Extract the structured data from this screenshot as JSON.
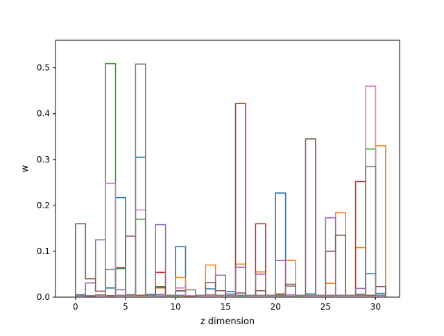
{
  "chart_data": {
    "type": "step",
    "title": "",
    "xlabel": "z dimension",
    "ylabel": "w",
    "xlim": [
      -2.0,
      32.4
    ],
    "ylim": [
      0,
      0.56
    ],
    "xticks": [
      0,
      5,
      10,
      15,
      20,
      25,
      30
    ],
    "yticks": [
      0.0,
      0.1,
      0.2,
      0.3,
      0.4,
      0.5
    ],
    "grid": false,
    "legend": "none",
    "bins_x": [
      0,
      1,
      2,
      3,
      4,
      5,
      6,
      7,
      8,
      9,
      10,
      11,
      12,
      13,
      14,
      15,
      16,
      17,
      18,
      19,
      20,
      21,
      22,
      23,
      24,
      25,
      26,
      27,
      28,
      29,
      30,
      31
    ],
    "series": [
      {
        "color": "#1f77b4",
        "values": [
          0.005,
          0.003,
          0.004,
          0.02,
          0.217,
          0.005,
          0.305,
          0.006,
          0.003,
          0.003,
          0.11,
          0.003,
          0.003,
          0.018,
          0.004,
          0.012,
          0.003,
          0.003,
          0.004,
          0.004,
          0.227,
          0.003,
          0.004,
          0.007,
          0.004,
          0.004,
          0.003,
          0.003,
          0.004,
          0.051,
          0.008
        ]
      },
      {
        "color": "#ff7f0e",
        "values": [
          0.003,
          0.002,
          0.003,
          0.003,
          0.003,
          0.003,
          0.003,
          0.003,
          0.02,
          0.003,
          0.043,
          0.002,
          0.003,
          0.07,
          0.003,
          0.003,
          0.072,
          0.003,
          0.055,
          0.003,
          0.005,
          0.08,
          0.003,
          0.003,
          0.003,
          0.03,
          0.184,
          0.003,
          0.108,
          0.003,
          0.33
        ]
      },
      {
        "color": "#2ca02c",
        "values": [
          0.003,
          0.003,
          0.004,
          0.509,
          0.062,
          0.004,
          0.17,
          0.004,
          0.021,
          0.003,
          0.003,
          0.003,
          0.003,
          0.003,
          0.003,
          0.003,
          0.003,
          0.003,
          0.003,
          0.003,
          0.003,
          0.003,
          0.003,
          0.003,
          0.003,
          0.003,
          0.003,
          0.003,
          0.003,
          0.323,
          0.003
        ]
      },
      {
        "color": "#d62728",
        "values": [
          0.003,
          0.003,
          0.003,
          0.003,
          0.003,
          0.004,
          0.004,
          0.004,
          0.054,
          0.004,
          0.004,
          0.003,
          0.004,
          0.004,
          0.004,
          0.004,
          0.422,
          0.004,
          0.16,
          0.004,
          0.004,
          0.004,
          0.004,
          0.004,
          0.004,
          0.004,
          0.004,
          0.004,
          0.252,
          0.004,
          0.004
        ]
      },
      {
        "color": "#9467bd",
        "values": [
          0.003,
          0.031,
          0.125,
          0.003,
          0.016,
          0.004,
          0.004,
          0.004,
          0.158,
          0.004,
          0.004,
          0.003,
          0.004,
          0.003,
          0.048,
          0.007,
          0.065,
          0.004,
          0.05,
          0.004,
          0.08,
          0.005,
          0.004,
          0.004,
          0.004,
          0.173,
          0.004,
          0.004,
          0.019,
          0.004,
          0.004
        ]
      },
      {
        "color": "#8c564b",
        "values": [
          0.16,
          0.04,
          0.013,
          0.003,
          0.064,
          0.133,
          0.004,
          0.004,
          0.023,
          0.004,
          0.014,
          0.003,
          0.004,
          0.032,
          0.014,
          0.004,
          0.009,
          0.004,
          0.014,
          0.004,
          0.007,
          0.028,
          0.004,
          0.345,
          0.004,
          0.1,
          0.135,
          0.004,
          0.006,
          0.004,
          0.023
        ]
      },
      {
        "color": "#e377c2",
        "values": [
          0.003,
          0.002,
          0.003,
          0.248,
          0.003,
          0.004,
          0.19,
          0.004,
          0.004,
          0.004,
          0.02,
          0.003,
          0.003,
          0.003,
          0.003,
          0.003,
          0.004,
          0.003,
          0.003,
          0.003,
          0.004,
          0.004,
          0.004,
          0.003,
          0.003,
          0.003,
          0.003,
          0.003,
          0.003,
          0.46,
          0.003
        ]
      },
      {
        "color": "#7f7f7f",
        "values": [
          0.003,
          0.003,
          0.005,
          0.06,
          0.004,
          0.004,
          0.508,
          0.004,
          0.006,
          0.004,
          0.013,
          0.016,
          0.004,
          0.005,
          0.004,
          0.004,
          0.004,
          0.004,
          0.004,
          0.004,
          0.004,
          0.024,
          0.004,
          0.004,
          0.004,
          0.004,
          0.004,
          0.004,
          0.004,
          0.285,
          0.004
        ]
      }
    ]
  }
}
